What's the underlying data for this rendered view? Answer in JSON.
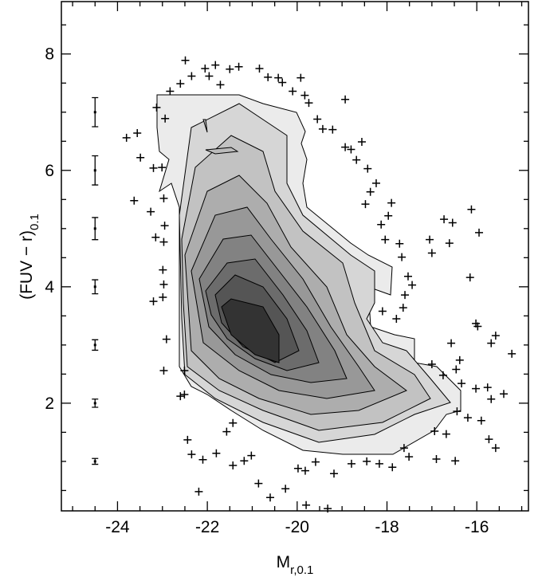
{
  "chart_data": {
    "type": "scatter",
    "xlabel": {
      "text": "M",
      "sub": "r,0.1"
    },
    "ylabel": {
      "text": "(FUV − r)",
      "sub": "0.1"
    },
    "xlim": [
      -25.25,
      -14.85
    ],
    "ylim": [
      0.15,
      8.9
    ],
    "xticks": [
      -24,
      -22,
      -20,
      -18,
      -16
    ],
    "yticks": [
      2,
      4,
      6,
      8
    ],
    "xminorticks": [
      -25,
      -24.5,
      -23.5,
      -23,
      -22.5,
      -21.5,
      -21,
      -20.5,
      -19.5,
      -19,
      -18.5,
      -17.5,
      -17,
      -16.5,
      -15.5,
      -15
    ],
    "yminorticks": [
      0.5,
      1,
      1.5,
      2.5,
      3,
      3.5,
      4.5,
      5,
      5.5,
      6.5,
      7,
      7.5,
      8.5
    ],
    "color": "#000000",
    "x": [
      -22.49,
      -22.35,
      -22.05,
      -21.96,
      -21.82,
      -21.71,
      -21.5,
      -21.3,
      -20.84,
      -20.65,
      -20.42,
      -20.33,
      -19.92,
      -20.1,
      -19.83,
      -19.74,
      -19.55,
      -19.43,
      -19.21,
      -18.93,
      -18.93,
      -18.8,
      -18.56,
      -18.43,
      -18.68,
      -18.37,
      -18.48,
      -18.24,
      -17.9,
      -17.97,
      -18.13,
      -18.04,
      -17.72,
      -17.67,
      -17.53,
      -17.6,
      -17.44,
      -17.64,
      -18.1,
      -17.79,
      -17.05,
      -17.0,
      -16.54,
      -16.73,
      -16.61,
      -16.15,
      -16.12,
      -15.95,
      -16.02,
      -15.98,
      -15.68,
      -15.58,
      -15.22,
      -16.57,
      -16.38,
      -16.46,
      -17.0,
      -16.75,
      -16.34,
      -16.02,
      -15.76,
      -15.68,
      -15.4,
      -16.44,
      -16.2,
      -15.9,
      -15.73,
      -15.58,
      -16.94,
      -16.68,
      -16.9,
      -16.48,
      -17.62,
      -17.51,
      -17.88,
      -18.17,
      -18.45,
      -18.79,
      -19.18,
      -19.59,
      -19.82,
      -19.98,
      -20.26,
      -19.8,
      -19.32,
      -20.6,
      -20.86,
      -21.18,
      -21.43,
      -21.02,
      -21.8,
      -22.35,
      -22.1,
      -22.19,
      -22.44,
      -21.43,
      -21.57,
      -22.51,
      -22.6,
      -22.97,
      -22.51,
      -22.91,
      -23.2,
      -22.99,
      -22.97,
      -22.99,
      -22.97,
      -23.15,
      -22.95,
      -22.97,
      -23.26,
      -23.63,
      -23.8,
      -23.56,
      -23.49,
      -23.2,
      -23.01,
      -22.94,
      -23.13,
      -22.83,
      -22.6
    ],
    "y": [
      7.89,
      7.62,
      7.75,
      7.62,
      7.81,
      7.47,
      7.74,
      7.78,
      7.75,
      7.6,
      7.59,
      7.51,
      7.59,
      7.36,
      7.29,
      7.16,
      6.88,
      6.71,
      6.7,
      7.22,
      6.4,
      6.36,
      6.49,
      6.03,
      6.18,
      5.63,
      5.42,
      5.78,
      5.44,
      5.22,
      5.07,
      4.81,
      4.74,
      4.51,
      4.18,
      3.86,
      4.03,
      3.64,
      3.58,
      3.45,
      4.81,
      4.58,
      5.1,
      5.16,
      4.75,
      4.16,
      5.33,
      4.93,
      3.37,
      3.32,
      3.03,
      3.16,
      2.85,
      3.03,
      2.74,
      2.58,
      2.67,
      2.48,
      2.34,
      2.25,
      2.27,
      2.07,
      2.16,
      1.86,
      1.75,
      1.7,
      1.38,
      1.23,
      1.52,
      1.47,
      1.04,
      1.01,
      1.23,
      1.08,
      0.9,
      0.96,
      1.0,
      0.96,
      0.79,
      0.99,
      0.84,
      0.88,
      0.53,
      0.25,
      0.19,
      0.38,
      0.62,
      1.01,
      0.93,
      1.1,
      1.14,
      1.12,
      1.03,
      0.48,
      1.37,
      1.66,
      1.51,
      2.15,
      2.12,
      2.56,
      2.56,
      3.1,
      3.75,
      3.82,
      4.04,
      4.29,
      4.77,
      4.85,
      5.05,
      5.52,
      5.29,
      5.48,
      6.56,
      6.64,
      6.22,
      6.04,
      6.05,
      6.89,
      7.08,
      7.36,
      7.49
    ],
    "errorbars": {
      "x": [
        -24.5,
        -24.5,
        -24.5,
        -24.5,
        -24.5,
        -24.5,
        -24.5
      ],
      "y": [
        1,
        2,
        3,
        4,
        5,
        6,
        7
      ],
      "err": [
        0.05,
        0.07,
        0.09,
        0.12,
        0.19,
        0.25,
        0.25
      ]
    }
  }
}
